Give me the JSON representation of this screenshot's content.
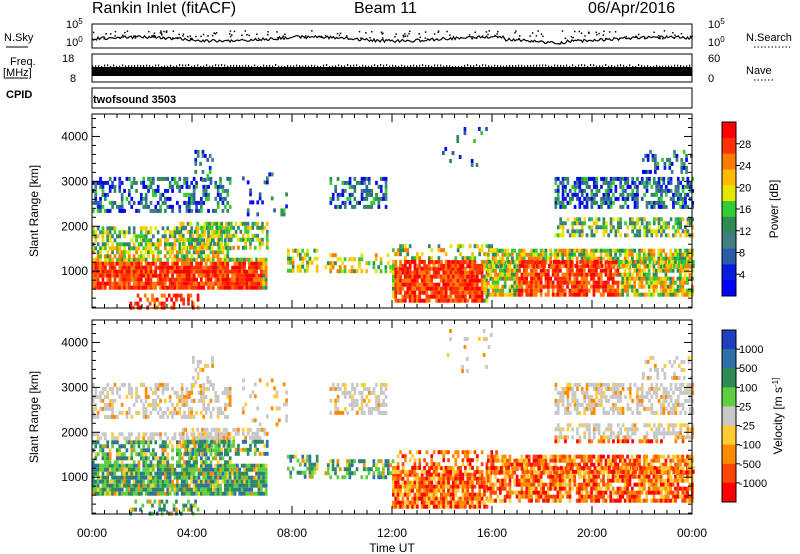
{
  "header": {
    "station": "Rankin Inlet (fitACF)",
    "beam": "Beam 11",
    "date": "06/Apr/2016"
  },
  "nsky_panel": {
    "label": "N.Sky",
    "right_label": "N.Search",
    "left_ticks": [
      "10^5",
      "10^0"
    ],
    "right_ticks": [
      "10^5",
      "10^0"
    ]
  },
  "freq_panel": {
    "label_line1": "Freq.",
    "label_line2": "[MHz]",
    "left_ticks": [
      "18",
      "8"
    ],
    "right_ticks": [
      "60",
      "0"
    ],
    "right_label": "Nave"
  },
  "cpid_panel": {
    "label": "CPID",
    "program": "twofsound 3503"
  },
  "chart_data": [
    {
      "type": "heatmap",
      "quantity": "power",
      "xlabel": "",
      "ylabel": "Slant Range [km]",
      "xlim_hours": [
        0,
        24
      ],
      "ylim": [
        180,
        4500
      ],
      "yticks": [
        1000,
        2000,
        3000,
        4000
      ],
      "ytick_labels": [
        "1000",
        "2000",
        "3000",
        "4000"
      ],
      "colorbar_label": "Power [dB]",
      "colorbar_ticks": [
        "28",
        "24",
        "20",
        "16",
        "12",
        "8",
        "4"
      ],
      "colorbar_colors": [
        "#ff0000",
        "#ff3300",
        "#ff7a00",
        "#ffbb00",
        "#e6e600",
        "#33cc33",
        "#2e8b57",
        "#3f7f7f",
        "#2a5caa",
        "#0a1adf",
        "#0000ff"
      ]
    },
    {
      "type": "heatmap",
      "quantity": "velocity",
      "xlabel": "Time UT",
      "ylabel": "Slant Range [km]",
      "xlim_hours": [
        0,
        24
      ],
      "ylim": [
        180,
        4500
      ],
      "yticks": [
        1000,
        2000,
        3000,
        4000
      ],
      "ytick_labels": [
        "1000",
        "2000",
        "3000",
        "4000"
      ],
      "xticks_hours": [
        0,
        4,
        8,
        12,
        16,
        20,
        24
      ],
      "xtick_labels": [
        "00:00",
        "04:00",
        "08:00",
        "12:00",
        "16:00",
        "20:00",
        "00:00"
      ],
      "colorbar_label": "Velocity [m s^-1]",
      "colorbar_ticks": [
        "1000",
        "500",
        "100",
        "25",
        "-25",
        "-100",
        "-500",
        "-1000"
      ],
      "colorbar_colors": [
        "#1f3fbf",
        "#2e6fa8",
        "#2e8b57",
        "#5fcf3f",
        "#c8c8c8",
        "#ffcc33",
        "#ff8c00",
        "#ff4400",
        "#ff0000"
      ]
    }
  ]
}
